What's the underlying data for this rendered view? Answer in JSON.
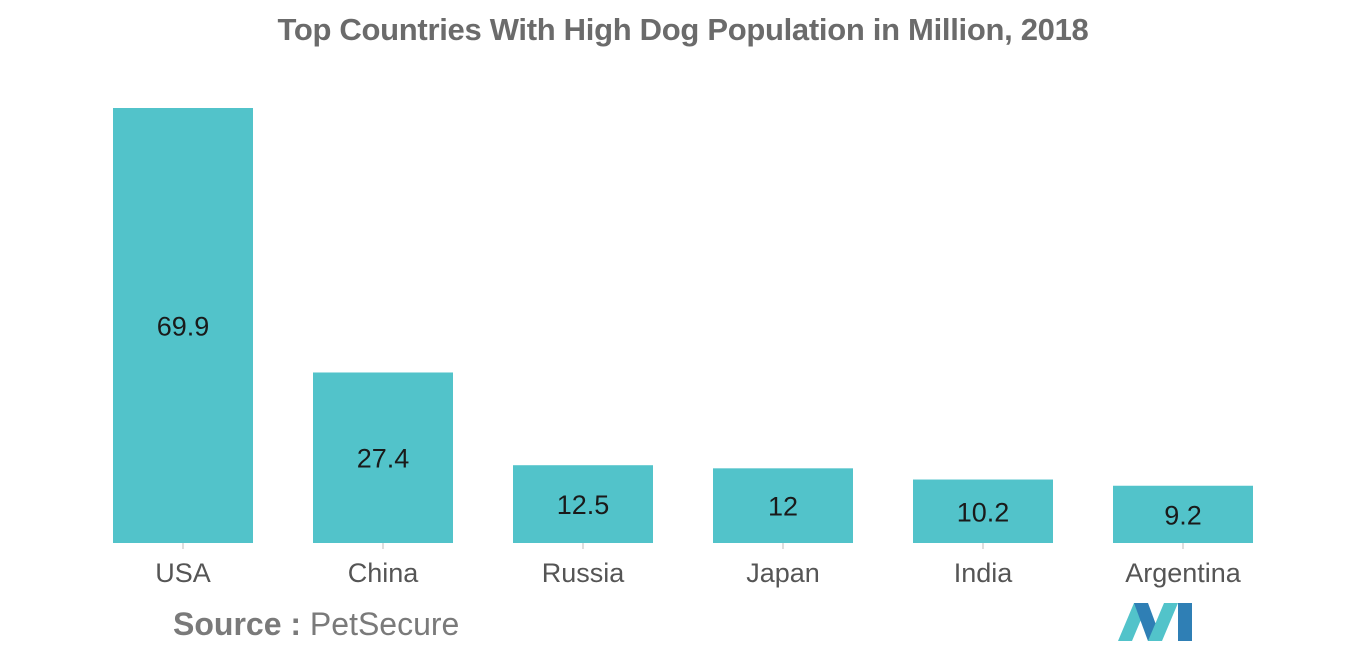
{
  "chart_data": {
    "type": "bar",
    "title": "Top Countries With High Dog Population in Million, 2018",
    "categories": [
      "USA",
      "China",
      "Russia",
      "Japan",
      "India",
      "Argentina"
    ],
    "values": [
      69.9,
      27.4,
      12.5,
      12,
      10.2,
      9.2
    ],
    "value_labels": [
      "69.9",
      "27.4",
      "12.5",
      "12",
      "10.2",
      "9.2"
    ],
    "xlabel": "",
    "ylabel": "",
    "ylim": [
      0,
      69.9
    ],
    "grid": false,
    "legend": "none",
    "bar_color": "#52c3ca",
    "value_label_position": "inside-center"
  },
  "source": {
    "label": "Source",
    "separator": ":",
    "name": "PetSecure"
  },
  "colors": {
    "title": "#6b6b6b",
    "axis_text": "#555555",
    "value_text": "#1a1a1a",
    "source_text": "#7a7a7a",
    "logo_dark": "#2f7fb5",
    "logo_light": "#52c3ca"
  },
  "logo": {
    "icon": "mordor-logo-icon"
  }
}
